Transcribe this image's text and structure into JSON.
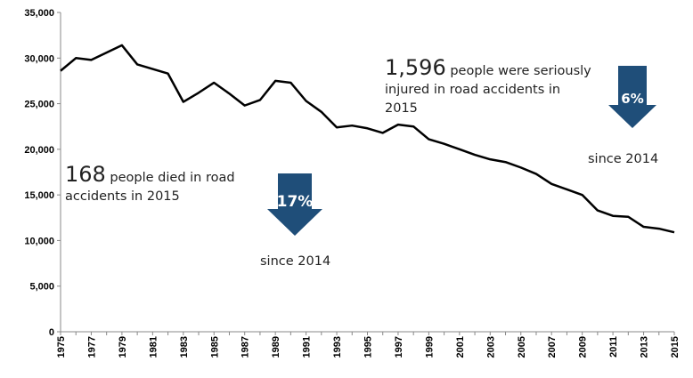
{
  "chart_data": {
    "type": "line",
    "title": "",
    "xlabel": "",
    "ylabel": "",
    "x": [
      1975,
      1976,
      1977,
      1978,
      1979,
      1980,
      1981,
      1982,
      1983,
      1984,
      1985,
      1986,
      1987,
      1988,
      1989,
      1990,
      1991,
      1992,
      1993,
      1994,
      1995,
      1996,
      1997,
      1998,
      1999,
      2000,
      2001,
      2002,
      2003,
      2004,
      2005,
      2006,
      2007,
      2008,
      2009,
      2010,
      2011,
      2012,
      2013,
      2014,
      2015
    ],
    "series": [
      {
        "values": [
          28600,
          30000,
          29800,
          30600,
          31400,
          29300,
          28800,
          28300,
          25200,
          26200,
          27300,
          26100,
          24800,
          25400,
          27500,
          27300,
          25300,
          24100,
          22400,
          22600,
          22300,
          21800,
          22700,
          22500,
          21100,
          20600,
          20000,
          19400,
          18900,
          18600,
          18000,
          17300,
          16200,
          15600,
          15000,
          13300,
          12700,
          12600,
          11500,
          11300,
          10900
        ],
        "color": "#000000"
      }
    ],
    "ylim": [
      0,
      35000
    ],
    "xlim": [
      1975,
      2015
    ],
    "yticks": [
      "0",
      "5,000",
      "10,000",
      "15,000",
      "20,000",
      "25,000",
      "30,000",
      "35,000"
    ],
    "xticks": [
      "1975",
      "1977",
      "1979",
      "1981",
      "1983",
      "1985",
      "1987",
      "1989",
      "1991",
      "1993",
      "1995",
      "1997",
      "1999",
      "2001",
      "2003",
      "2005",
      "2007",
      "2009",
      "2011",
      "2013",
      "2015"
    ],
    "grid": false,
    "legend": "none"
  },
  "annotations": {
    "deaths": {
      "number": "168",
      "text_line1": " people died in road",
      "text_line2": "accidents  in 2015",
      "change": "17%",
      "since": "since 2014"
    },
    "injuries": {
      "number": "1,596",
      "text_line1": " people were seriously",
      "text_line2": "injured in road accidents in",
      "text_line3": "2015",
      "change": "6%",
      "since": "since 2014"
    },
    "arrow_color": "#1f4e79"
  }
}
